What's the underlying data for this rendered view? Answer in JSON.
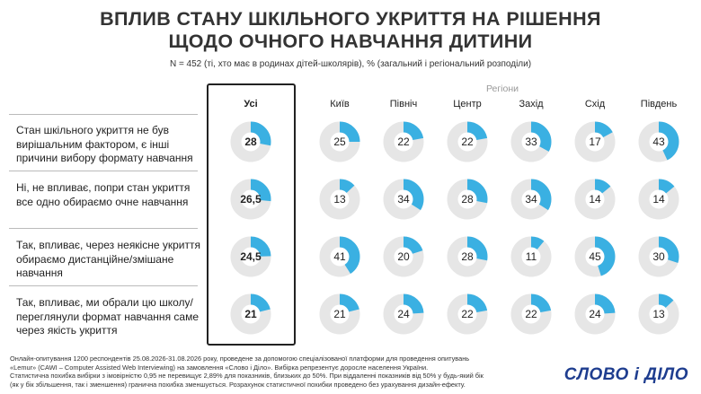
{
  "title_line1": "ВПЛИВ СТАНУ ШКІЛЬНОГО УКРИТТЯ НА РІШЕННЯ",
  "title_line2": "ЩОДО ОЧНОГО НАВЧАННЯ ДИТИНИ",
  "subtitle": "N = 452 (ті, хто має в родинах дітей-школярів), % (загальний і регіональний розподіли)",
  "regions_label": "Регіони",
  "colors": {
    "accent": "#3ab0e2",
    "track": "#e6e6e6"
  },
  "chart_data": {
    "type": "donut-grid",
    "columns": [
      "Усі",
      "Київ",
      "Північ",
      "Центр",
      "Захід",
      "Схід",
      "Південь"
    ],
    "rows": [
      {
        "label": "Стан шкільного укриття не був вирішальним фактором, є інші причини вибору формату навчання",
        "values": [
          "28",
          "25",
          "22",
          "22",
          "33",
          "17",
          "43"
        ]
      },
      {
        "label": "Ні, не впливає, попри стан укриття все одно обираємо очне навчання",
        "values": [
          "26,5",
          "13",
          "34",
          "28",
          "34",
          "14",
          "14"
        ]
      },
      {
        "label": "Так, впливає, через неякісне укриття обираємо дистанційне/змішане навчання",
        "values": [
          "24,5",
          "41",
          "20",
          "28",
          "11",
          "45",
          "30"
        ]
      },
      {
        "label": "Так, впливає, ми обрали цю школу/переглянули формат навчання саме через якість укриття",
        "values": [
          "21",
          "21",
          "24",
          "22",
          "22",
          "24",
          "13"
        ]
      }
    ]
  },
  "footer": [
    "Онлайн-опитування 1200 респондентів 25.08.2026-31.08.2026 року, проведене за допомогою спеціалізованої платформи для проведення опитувань",
    "«Lemur» (CAWI – Computer Assisted Web Interviewing) на замовлення «Слово і Діло». Вибірка репрезентує доросле населення України.",
    "Статистична похибка вибірки з імовірністю 0,95 не перевищує 2,89% для показників, близьких до 50%. При віддаленні показників від 50% у будь-який бік",
    "(як у бік збільшення, так і зменшення) гранична похибка зменшується. Розрахунок статистичної похибки проведено без урахування дизайн-ефекту."
  ],
  "logo": "СЛОВО і ДІЛО"
}
